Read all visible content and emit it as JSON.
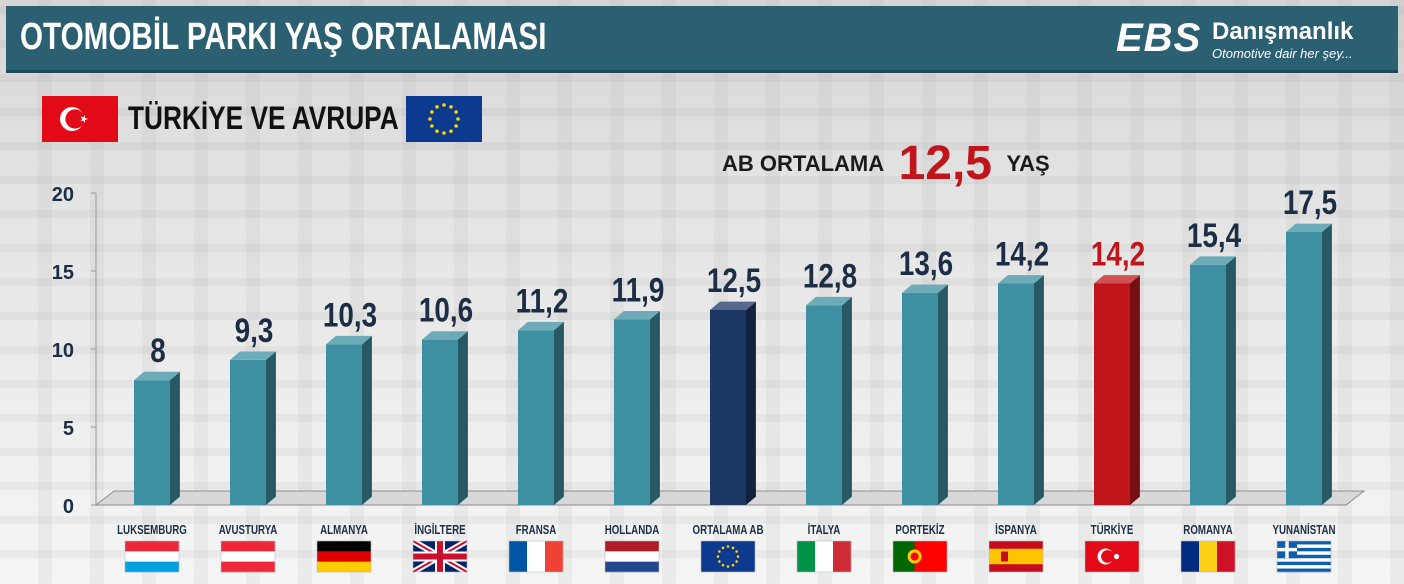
{
  "header": {
    "title": "OTOMOBİL PARKI YAŞ ORTALAMASI",
    "brand_logo": "EBS",
    "brand_name": "Danışmanlık",
    "brand_tagline": "Otomotive dair her şey..."
  },
  "subtitle": {
    "text": "TÜRKİYE VE AVRUPA",
    "left_icon": "turkey-flag-icon",
    "right_icon": "eu-flag-icon"
  },
  "average_note": {
    "label": "AB ORTALAMA",
    "value": "12,5",
    "unit": "YAŞ"
  },
  "colors": {
    "header": "#2b5f72",
    "bar": "#3d8fa1",
    "bar_highlight_eu": "#1c3763",
    "bar_highlight_tr": "#c0161b",
    "average_value": "#c0161b"
  },
  "chart_data": {
    "type": "bar",
    "ylim": [
      0,
      20
    ],
    "yticks": [
      0,
      5,
      10,
      15,
      20
    ],
    "grid": false,
    "categories": [
      "LUKSEMBURG",
      "AVUSTURYA",
      "ALMANYA",
      "İNGİLTERE",
      "FRANSA",
      "HOLLANDA",
      "ORTALAMA AB",
      "İTALYA",
      "PORTEKİZ",
      "İSPANYA",
      "TÜRKİYE",
      "ROMANYA",
      "YUNANİSTAN"
    ],
    "values": [
      8,
      9.3,
      10.3,
      10.6,
      11.2,
      11.9,
      12.5,
      12.8,
      13.6,
      14.2,
      14.2,
      15.4,
      17.5
    ],
    "data_labels": [
      "8",
      "9,3",
      "10,3",
      "10,6",
      "11,2",
      "11,9",
      "12,5",
      "12,8",
      "13,6",
      "14,2",
      "14,2",
      "15,4",
      "17,5"
    ],
    "highlight": {
      "ORTALAMA AB": "#1c3763",
      "TÜRKİYE": "#c0161b"
    },
    "flags": [
      "luxembourg-flag-icon",
      "austria-flag-icon",
      "germany-flag-icon",
      "uk-flag-icon",
      "france-flag-icon",
      "netherlands-flag-icon",
      "eu-flag-icon",
      "italy-flag-icon",
      "portugal-flag-icon",
      "spain-flag-icon",
      "turkey-flag-icon",
      "romania-flag-icon",
      "greece-flag-icon"
    ]
  }
}
